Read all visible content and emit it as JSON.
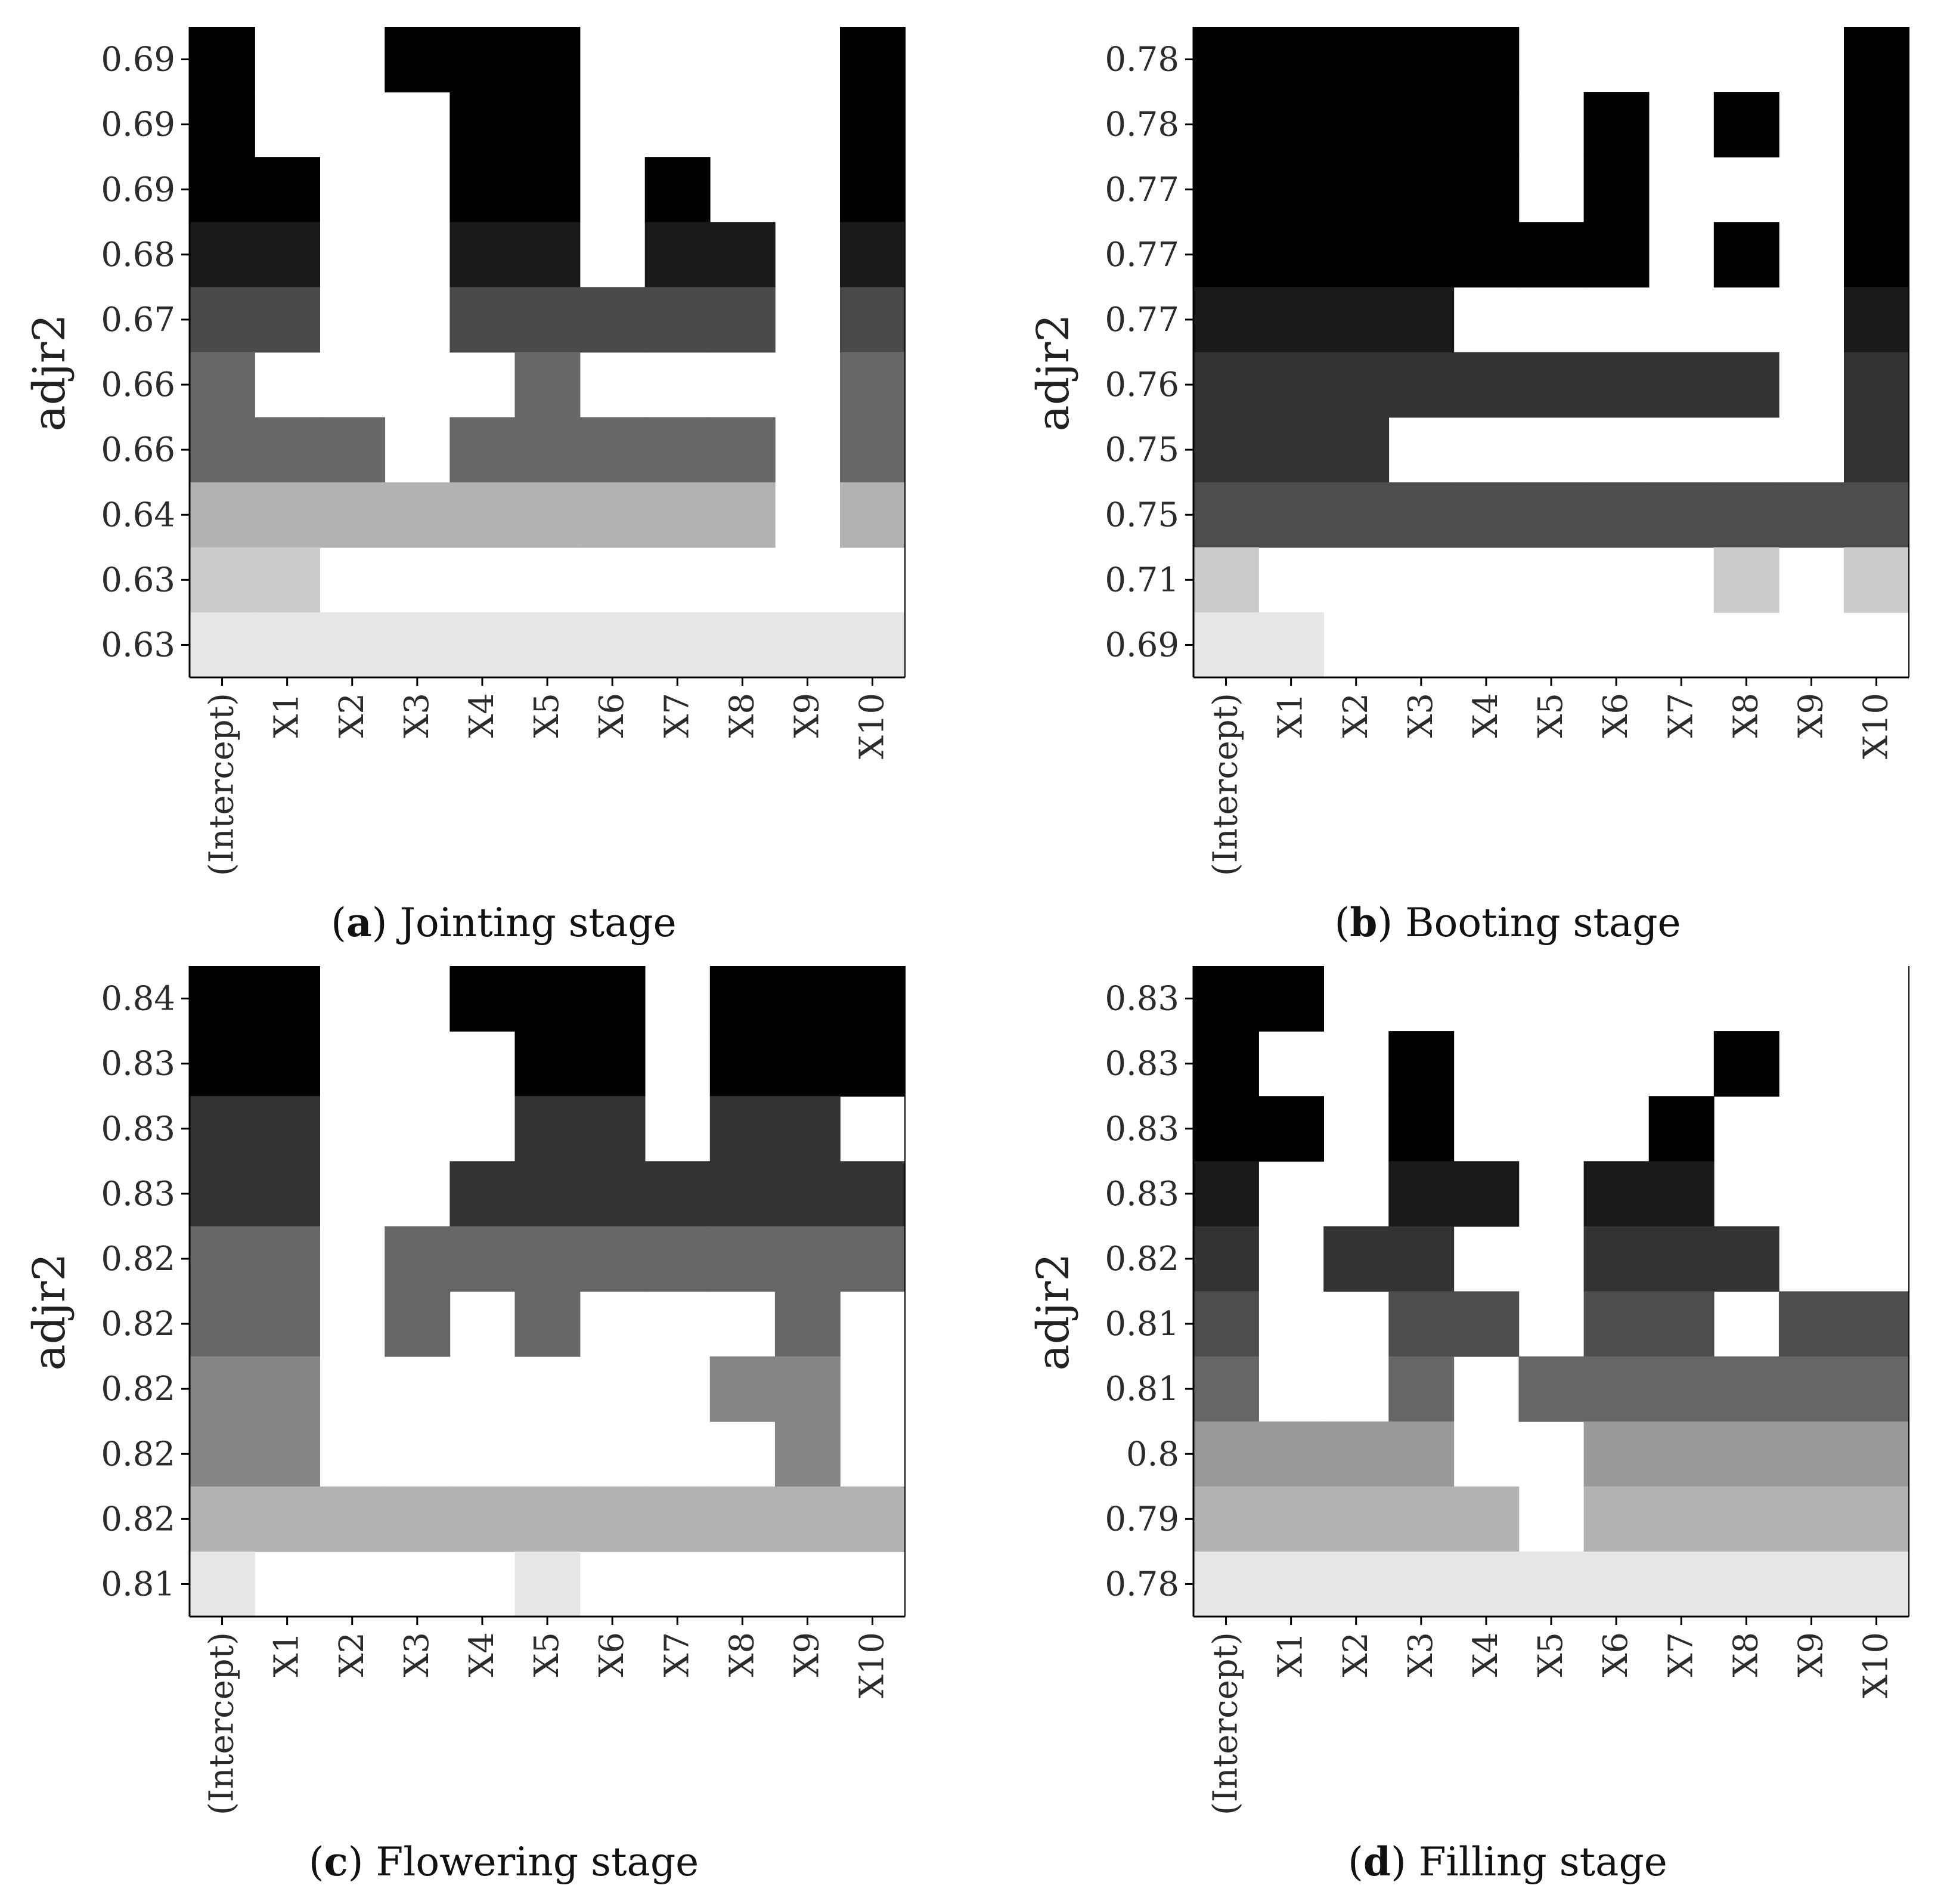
{
  "chart_data": [
    {
      "type": "heatmap",
      "panel_letter": "a",
      "caption": "Jointing stage",
      "ylabel": "adjr2",
      "categories": [
        "(Intercept)",
        "X1",
        "X2",
        "X3",
        "X4",
        "X5",
        "X6",
        "X7",
        "X8",
        "X9",
        "X10"
      ],
      "row_labels": [
        "0.69",
        "0.69",
        "0.69",
        "0.68",
        "0.67",
        "0.66",
        "0.66",
        "0.64",
        "0.63",
        "0.63"
      ],
      "row_shades": [
        "#000000",
        "#000000",
        "#000000",
        "#1a1a1a",
        "#4a4a4a",
        "#686868",
        "#686868",
        "#b2b2b2",
        "#cbcbcb",
        "#e6e6e6"
      ],
      "matrix": [
        [
          1,
          0,
          0,
          1,
          1,
          1,
          0,
          0,
          0,
          0,
          1
        ],
        [
          1,
          0,
          0,
          0,
          1,
          1,
          0,
          0,
          0,
          0,
          1
        ],
        [
          1,
          1,
          0,
          0,
          1,
          1,
          0,
          1,
          0,
          0,
          1
        ],
        [
          1,
          1,
          0,
          0,
          1,
          1,
          0,
          1,
          1,
          0,
          1
        ],
        [
          1,
          1,
          0,
          0,
          1,
          1,
          1,
          1,
          1,
          0,
          1
        ],
        [
          1,
          0,
          0,
          0,
          0,
          1,
          0,
          0,
          0,
          0,
          1
        ],
        [
          1,
          1,
          1,
          0,
          1,
          1,
          1,
          1,
          1,
          0,
          1
        ],
        [
          1,
          1,
          1,
          1,
          1,
          1,
          1,
          1,
          1,
          0,
          1
        ],
        [
          1,
          1,
          0,
          0,
          0,
          0,
          0,
          0,
          0,
          0,
          0
        ],
        [
          1,
          1,
          1,
          1,
          1,
          1,
          1,
          1,
          1,
          1,
          1
        ]
      ]
    },
    {
      "type": "heatmap",
      "panel_letter": "b",
      "caption": "Booting stage",
      "ylabel": "adjr2",
      "categories": [
        "(Intercept)",
        "X1",
        "X2",
        "X3",
        "X4",
        "X5",
        "X6",
        "X7",
        "X8",
        "X9",
        "X10"
      ],
      "row_labels": [
        "0.78",
        "0.78",
        "0.77",
        "0.77",
        "0.77",
        "0.76",
        "0.75",
        "0.75",
        "0.71",
        "0.69"
      ],
      "row_shades": [
        "#000000",
        "#000000",
        "#000000",
        "#000000",
        "#1a1a1a",
        "#333333",
        "#333333",
        "#4d4d4d",
        "#cbcbcb",
        "#e6e6e6"
      ],
      "matrix": [
        [
          1,
          1,
          1,
          1,
          1,
          0,
          0,
          0,
          0,
          0,
          1
        ],
        [
          1,
          1,
          1,
          1,
          1,
          0,
          1,
          0,
          1,
          0,
          1
        ],
        [
          1,
          1,
          1,
          1,
          1,
          0,
          1,
          0,
          0,
          0,
          1
        ],
        [
          1,
          1,
          1,
          1,
          1,
          1,
          1,
          0,
          1,
          0,
          1
        ],
        [
          1,
          1,
          1,
          1,
          0,
          0,
          0,
          0,
          0,
          0,
          1
        ],
        [
          1,
          1,
          1,
          1,
          1,
          1,
          1,
          1,
          1,
          0,
          1
        ],
        [
          1,
          1,
          1,
          0,
          0,
          0,
          0,
          0,
          0,
          0,
          1
        ],
        [
          1,
          1,
          1,
          1,
          1,
          1,
          1,
          1,
          1,
          1,
          1
        ],
        [
          1,
          0,
          0,
          0,
          0,
          0,
          0,
          0,
          1,
          0,
          1
        ],
        [
          1,
          1,
          0,
          0,
          0,
          0,
          0,
          0,
          0,
          0,
          0
        ]
      ]
    },
    {
      "type": "heatmap",
      "panel_letter": "c",
      "caption": "Flowering stage",
      "ylabel": "adjr2",
      "categories": [
        "(Intercept)",
        "X1",
        "X2",
        "X3",
        "X4",
        "X5",
        "X6",
        "X7",
        "X8",
        "X9",
        "X10"
      ],
      "row_labels": [
        "0.84",
        "0.83",
        "0.83",
        "0.83",
        "0.82",
        "0.82",
        "0.82",
        "0.82",
        "0.82",
        "0.81"
      ],
      "row_shades": [
        "#000000",
        "#000000",
        "#333333",
        "#333333",
        "#666666",
        "#666666",
        "#858585",
        "#858585",
        "#b2b2b2",
        "#e6e6e6"
      ],
      "matrix": [
        [
          1,
          1,
          0,
          0,
          1,
          1,
          1,
          0,
          1,
          1,
          1
        ],
        [
          1,
          1,
          0,
          0,
          0,
          1,
          1,
          0,
          1,
          1,
          1
        ],
        [
          1,
          1,
          0,
          0,
          0,
          1,
          1,
          0,
          1,
          1,
          0
        ],
        [
          1,
          1,
          0,
          0,
          1,
          1,
          1,
          1,
          1,
          1,
          1
        ],
        [
          1,
          1,
          0,
          1,
          1,
          1,
          1,
          1,
          1,
          1,
          1
        ],
        [
          1,
          1,
          0,
          1,
          0,
          1,
          0,
          0,
          0,
          1,
          0
        ],
        [
          1,
          1,
          0,
          0,
          0,
          0,
          0,
          0,
          1,
          1,
          0
        ],
        [
          1,
          1,
          0,
          0,
          0,
          0,
          0,
          0,
          0,
          1,
          0
        ],
        [
          1,
          1,
          1,
          1,
          1,
          1,
          1,
          1,
          1,
          1,
          1
        ],
        [
          1,
          0,
          0,
          0,
          0,
          1,
          0,
          0,
          0,
          0,
          0
        ]
      ]
    },
    {
      "type": "heatmap",
      "panel_letter": "d",
      "caption": "Filling stage",
      "ylabel": "adjr2",
      "categories": [
        "(Intercept)",
        "X1",
        "X2",
        "X3",
        "X4",
        "X5",
        "X6",
        "X7",
        "X8",
        "X9",
        "X10"
      ],
      "row_labels": [
        "0.83",
        "0.83",
        "0.83",
        "0.83",
        "0.82",
        "0.81",
        "0.81",
        "0.8",
        "0.79",
        "0.78"
      ],
      "row_shades": [
        "#000000",
        "#000000",
        "#000000",
        "#1a1a1a",
        "#333333",
        "#4d4d4d",
        "#666666",
        "#999999",
        "#b2b2b2",
        "#e6e6e6"
      ],
      "matrix": [
        [
          1,
          1,
          0,
          0,
          0,
          0,
          0,
          0,
          0,
          0,
          0
        ],
        [
          1,
          0,
          0,
          1,
          0,
          0,
          0,
          0,
          1,
          0,
          0
        ],
        [
          1,
          1,
          0,
          1,
          0,
          0,
          0,
          1,
          0,
          0,
          0
        ],
        [
          1,
          0,
          0,
          1,
          1,
          0,
          1,
          1,
          0,
          0,
          0
        ],
        [
          1,
          0,
          1,
          1,
          0,
          0,
          1,
          1,
          1,
          0,
          0
        ],
        [
          1,
          0,
          0,
          1,
          1,
          0,
          1,
          1,
          0,
          1,
          1
        ],
        [
          1,
          0,
          0,
          1,
          0,
          1,
          1,
          1,
          1,
          1,
          1
        ],
        [
          1,
          1,
          1,
          1,
          0,
          0,
          1,
          1,
          1,
          1,
          1
        ],
        [
          1,
          1,
          1,
          1,
          1,
          0,
          1,
          1,
          1,
          1,
          1
        ],
        [
          1,
          1,
          1,
          1,
          1,
          1,
          1,
          1,
          1,
          1,
          1
        ]
      ]
    }
  ]
}
